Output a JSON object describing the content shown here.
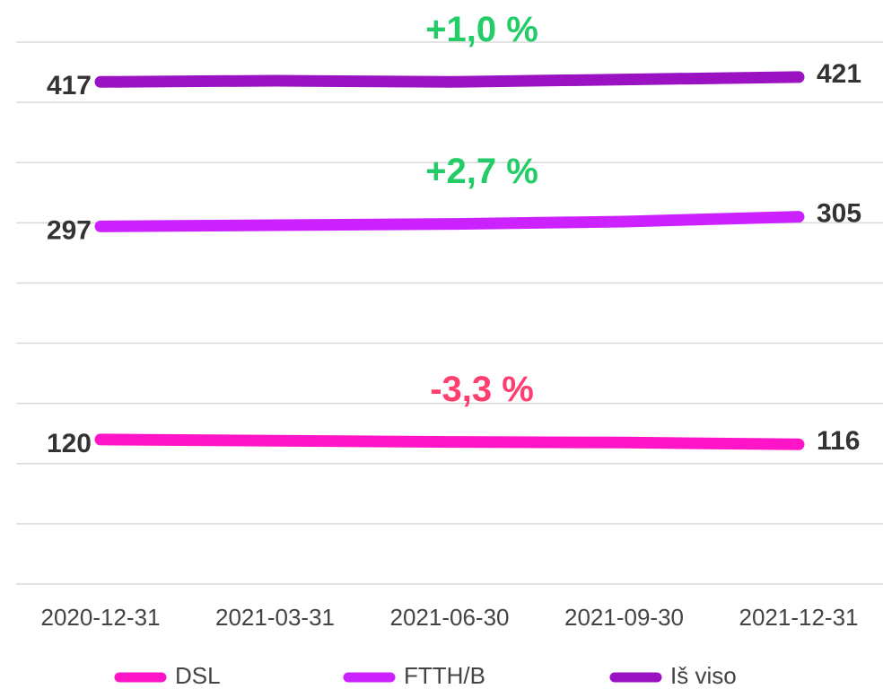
{
  "chart_data": {
    "type": "line",
    "x": [
      "2020-12-31",
      "2021-03-31",
      "2021-06-30",
      "2021-09-30",
      "2021-12-31"
    ],
    "series": [
      {
        "name": "DSL",
        "color": "#ff14c8",
        "values": [
          120,
          119,
          118,
          117.5,
          116
        ]
      },
      {
        "name": "FTTH/B",
        "color": "#cc22ff",
        "values": [
          297,
          298,
          299,
          301,
          305
        ]
      },
      {
        "name": "Iš viso",
        "color": "#9b12c2",
        "values": [
          417,
          418,
          417,
          419,
          421
        ]
      }
    ],
    "annotations": [
      {
        "text": "-3,3 %",
        "color": "#ff3d6e"
      },
      {
        "text": "+2,7 %",
        "color": "#22cc66"
      },
      {
        "text": "+1,0 %",
        "color": "#22cc66"
      }
    ],
    "ylim": [
      0,
      450
    ],
    "yticks": [
      0,
      50,
      100,
      150,
      200,
      250,
      300,
      350,
      400,
      450
    ],
    "grid": true
  }
}
